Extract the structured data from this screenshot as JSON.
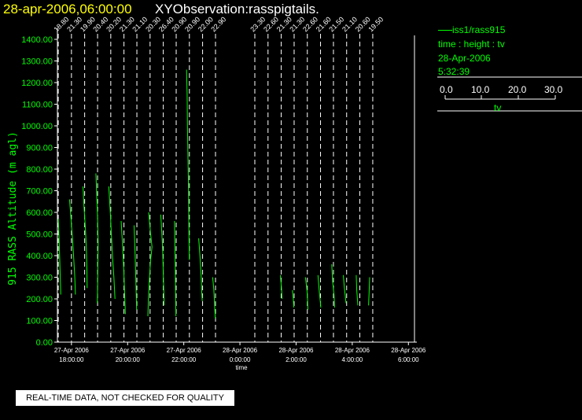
{
  "header": {
    "date_time": "28-apr-2006,06:00:00",
    "title": "XYObservation:rasspigtails."
  },
  "legend": {
    "series": "iss1/rass915",
    "variables": "time : height : tv",
    "date": "28-Apr-2006",
    "time": "5:32:39",
    "scale_ticks": [
      "0.0",
      "10.0",
      "20.0",
      "30.0"
    ],
    "scale_unit": "tv"
  },
  "footer": {
    "disclaimer": "REAL-TIME DATA, NOT CHECKED FOR QUALITY"
  },
  "colors": {
    "background": "#000000",
    "axis": "#ffffff",
    "data": "#00ff00",
    "title_date": "#ffff00"
  },
  "chart_data": {
    "type": "line",
    "title": "XYObservation:rasspigtails.",
    "ylabel": "915 RASS Altitude (m agl)",
    "xlabel": "time",
    "ylim": [
      0,
      1400
    ],
    "y_ticks": [
      "0.00",
      "100.00",
      "200.00",
      "300.00",
      "400.00",
      "500.00",
      "600.00",
      "700.00",
      "800.00",
      "900.00",
      "1000.00",
      "1100.00",
      "1200.00",
      "1300.00",
      "1400.00"
    ],
    "xlim_hours": [
      17.5,
      30.3
    ],
    "x_ticks": [
      {
        "hour": 18,
        "date": "27-Apr 2006",
        "time": "18:00:00"
      },
      {
        "hour": 20,
        "date": "27-Apr 2006",
        "time": "20:00:00"
      },
      {
        "hour": 22,
        "date": "27-Apr 2006",
        "time": "22:00:00"
      },
      {
        "hour": 24,
        "date": "28-Apr 2006",
        "time": "0:00:00"
      },
      {
        "hour": 26,
        "date": "28-Apr 2006",
        "time": "2:00:00"
      },
      {
        "hour": 28,
        "date": "28-Apr 2006",
        "time": "4:00:00"
      },
      {
        "hour": 30,
        "date": "28-Apr 2006",
        "time": "6:00:00"
      }
    ],
    "profiles": [
      {
        "hour": 17.53,
        "top_label": "18.80",
        "points": [
          [
            17.53,
            570
          ],
          [
            17.56,
            480
          ],
          [
            17.58,
            390
          ],
          [
            17.6,
            300
          ],
          [
            17.62,
            220
          ]
        ]
      },
      {
        "hour": 18.0,
        "top_label": "21.30",
        "points": [
          [
            17.93,
            660
          ],
          [
            17.99,
            560
          ],
          [
            18.04,
            470
          ],
          [
            18.08,
            390
          ],
          [
            18.12,
            300
          ],
          [
            18.14,
            220
          ]
        ]
      },
      {
        "hour": 18.47,
        "top_label": "19.90",
        "points": [
          [
            18.41,
            720
          ],
          [
            18.45,
            620
          ],
          [
            18.5,
            520
          ],
          [
            18.53,
            430
          ],
          [
            18.55,
            340
          ],
          [
            18.56,
            250
          ]
        ]
      },
      {
        "hour": 18.93,
        "top_label": "20.40",
        "points": [
          [
            18.87,
            780
          ],
          [
            18.9,
            680
          ],
          [
            18.93,
            570
          ],
          [
            18.95,
            460
          ],
          [
            18.94,
            350
          ],
          [
            18.93,
            250
          ],
          [
            18.92,
            180
          ]
        ]
      },
      {
        "hour": 19.4,
        "top_label": "20.20",
        "points": [
          [
            19.33,
            720
          ],
          [
            19.38,
            610
          ],
          [
            19.42,
            500
          ],
          [
            19.46,
            400
          ],
          [
            19.51,
            300
          ],
          [
            19.55,
            200
          ]
        ]
      },
      {
        "hour": 19.87,
        "top_label": "21.30",
        "points": [
          [
            19.77,
            560
          ],
          [
            19.82,
            450
          ],
          [
            19.86,
            340
          ],
          [
            19.89,
            240
          ],
          [
            19.92,
            130
          ]
        ]
      },
      {
        "hour": 20.33,
        "top_label": "21.10",
        "points": [
          [
            20.23,
            540
          ],
          [
            20.26,
            440
          ],
          [
            20.28,
            340
          ],
          [
            20.3,
            250
          ],
          [
            20.32,
            150
          ]
        ]
      },
      {
        "hour": 20.8,
        "top_label": "20.30",
        "points": [
          [
            20.75,
            600
          ],
          [
            20.82,
            500
          ],
          [
            20.87,
            440
          ],
          [
            20.82,
            380
          ],
          [
            20.78,
            300
          ],
          [
            20.74,
            200
          ],
          [
            20.72,
            120
          ]
        ]
      },
      {
        "hour": 21.27,
        "top_label": "26.40",
        "points": [
          [
            21.18,
            590
          ],
          [
            21.22,
            500
          ],
          [
            21.25,
            420
          ],
          [
            21.27,
            320
          ],
          [
            21.29,
            230
          ],
          [
            21.3,
            170
          ]
        ]
      },
      {
        "hour": 21.73,
        "top_label": "20.90",
        "points": [
          [
            21.67,
            560
          ],
          [
            21.68,
            480
          ],
          [
            21.69,
            400
          ],
          [
            21.7,
            300
          ],
          [
            21.71,
            200
          ],
          [
            21.72,
            120
          ]
        ]
      },
      {
        "hour": 22.2,
        "top_label": "20.90",
        "points": [
          [
            22.1,
            1260
          ],
          [
            22.12,
            1150
          ],
          [
            22.13,
            1000
          ],
          [
            22.15,
            850
          ],
          [
            22.17,
            700
          ],
          [
            22.18,
            550
          ],
          [
            22.19,
            450
          ],
          [
            22.2,
            380
          ]
        ]
      },
      {
        "hour": 22.67,
        "top_label": "22.00",
        "points": [
          [
            22.53,
            480
          ],
          [
            22.58,
            390
          ],
          [
            22.62,
            300
          ],
          [
            22.64,
            230
          ],
          [
            22.66,
            190
          ]
        ]
      },
      {
        "hour": 23.13,
        "top_label": "22.90",
        "points": [
          [
            23.03,
            300
          ],
          [
            23.07,
            240
          ],
          [
            23.1,
            170
          ],
          [
            23.12,
            110
          ]
        ]
      },
      {
        "hour": 24.53,
        "top_label": "23.30",
        "points": []
      },
      {
        "hour": 25.0,
        "top_label": "22.60",
        "points": []
      },
      {
        "hour": 25.47,
        "top_label": "21.30",
        "points": [
          [
            25.44,
            310
          ],
          [
            25.48,
            250
          ],
          [
            25.5,
            200
          ]
        ]
      },
      {
        "hour": 25.93,
        "top_label": "21.30",
        "points": [
          [
            25.87,
            240
          ],
          [
            25.9,
            200
          ],
          [
            25.92,
            160
          ]
        ]
      },
      {
        "hour": 26.4,
        "top_label": "22.60",
        "points": [
          [
            26.33,
            300
          ],
          [
            26.37,
            260
          ],
          [
            26.4,
            220
          ],
          [
            26.42,
            150
          ]
        ]
      },
      {
        "hour": 26.87,
        "top_label": "21.60",
        "points": [
          [
            26.78,
            310
          ],
          [
            26.82,
            240
          ],
          [
            26.86,
            190
          ],
          [
            26.88,
            160
          ]
        ]
      },
      {
        "hour": 27.33,
        "top_label": "21.50",
        "points": [
          [
            27.27,
            360
          ],
          [
            27.3,
            280
          ],
          [
            27.35,
            220
          ],
          [
            27.37,
            160
          ]
        ]
      },
      {
        "hour": 27.8,
        "top_label": "21.10",
        "points": [
          [
            27.68,
            310
          ],
          [
            27.72,
            250
          ],
          [
            27.78,
            180
          ]
        ]
      },
      {
        "hour": 28.27,
        "top_label": "20.60",
        "points": [
          [
            28.14,
            310
          ],
          [
            28.16,
            240
          ],
          [
            28.2,
            170
          ]
        ]
      },
      {
        "hour": 28.73,
        "top_label": "19.50",
        "points": [
          [
            28.62,
            300
          ],
          [
            28.6,
            230
          ],
          [
            28.58,
            170
          ]
        ]
      }
    ]
  }
}
